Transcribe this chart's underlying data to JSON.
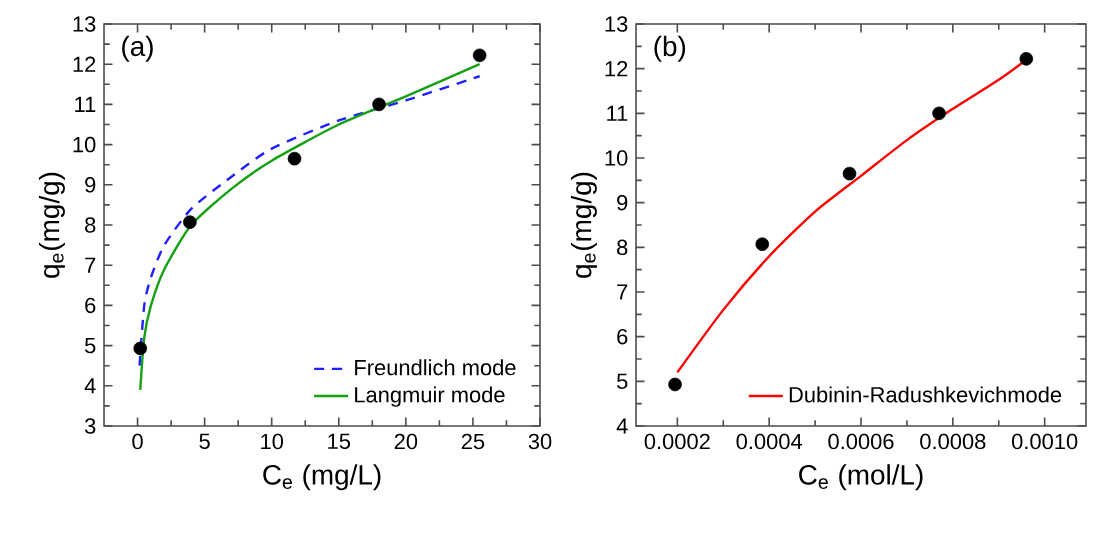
{
  "chart_data": [
    {
      "type": "scatter",
      "xlabel": "C$_{e}$ (mg/L)",
      "ylabel": "q$_{e}$(mg/g)",
      "annotations": [
        "(a)"
      ],
      "xlim": [
        -2.5,
        30
      ],
      "ylim": [
        3,
        13
      ],
      "xticks": [
        0,
        5,
        10,
        15,
        20,
        25,
        30
      ],
      "yticks": [
        3,
        4,
        5,
        6,
        7,
        8,
        9,
        10,
        11,
        12,
        13
      ],
      "legend": "bottom right",
      "grid": false,
      "series": [
        {
          "type": "line",
          "name": "Freundlich mode",
          "color": "#1f1fff",
          "line_style": "dashed",
          "marker": "none",
          "x": [
            0.15,
            0.5,
            1,
            2,
            4,
            7,
            10,
            15,
            20,
            25.5
          ],
          "values": [
            4.5,
            6.0,
            6.7,
            7.5,
            8.4,
            9.2,
            9.9,
            10.6,
            11.1,
            11.7
          ]
        },
        {
          "type": "line",
          "name": "Langmuir  mode",
          "color": "#13a013",
          "line_style": "solid",
          "marker": "none",
          "x": [
            0.2,
            0.5,
            1,
            2,
            4,
            7,
            10,
            15,
            20,
            25.5
          ],
          "values": [
            3.9,
            5.2,
            6.0,
            6.9,
            8.0,
            8.9,
            9.6,
            10.5,
            11.2,
            12.0
          ]
        },
        {
          "color": "#000000",
          "marker": "circle",
          "x": [
            0.2,
            3.9,
            11.7,
            18.0,
            25.5
          ],
          "values": [
            4.93,
            8.07,
            9.65,
            11.0,
            12.22
          ]
        }
      ]
    },
    {
      "type": "scatter",
      "xlabel": "C$_{e}$ (mol/L)",
      "ylabel": "q$_{e}$(mg/g)",
      "annotations": [
        "(b)"
      ],
      "xlim": [
        0.00011,
        0.00109
      ],
      "ylim": [
        4,
        13
      ],
      "xticks": [
        {
          "value": 0.0002,
          "label": "0.0002"
        },
        {
          "value": 0.0004,
          "label": "0.0004"
        },
        {
          "value": 0.0006,
          "label": "0.0006"
        },
        {
          "value": 0.0008,
          "label": "0.0008"
        },
        {
          "value": 0.001,
          "label": "0.0010"
        }
      ],
      "yticks": [
        4,
        5,
        6,
        7,
        8,
        9,
        10,
        11,
        12,
        13
      ],
      "legend": "bottom right",
      "grid": false,
      "series": [
        {
          "type": "line",
          "name": "Dubinin-Radushkevichmode",
          "color": "#ff0000",
          "line_style": "solid",
          "marker": "none",
          "x": [
            0.0002,
            0.0003,
            0.0004,
            0.0005,
            0.0006,
            0.0007,
            0.0008,
            0.0009,
            0.00096
          ],
          "values": [
            5.2,
            6.6,
            7.8,
            8.8,
            9.6,
            10.4,
            11.1,
            11.75,
            12.2
          ]
        },
        {
          "color": "#000000",
          "marker": "circle",
          "x": [
            0.000195,
            0.000385,
            0.000575,
            0.00077,
            0.00096
          ],
          "values": [
            4.93,
            8.07,
            9.65,
            11.0,
            12.22
          ]
        }
      ]
    }
  ]
}
